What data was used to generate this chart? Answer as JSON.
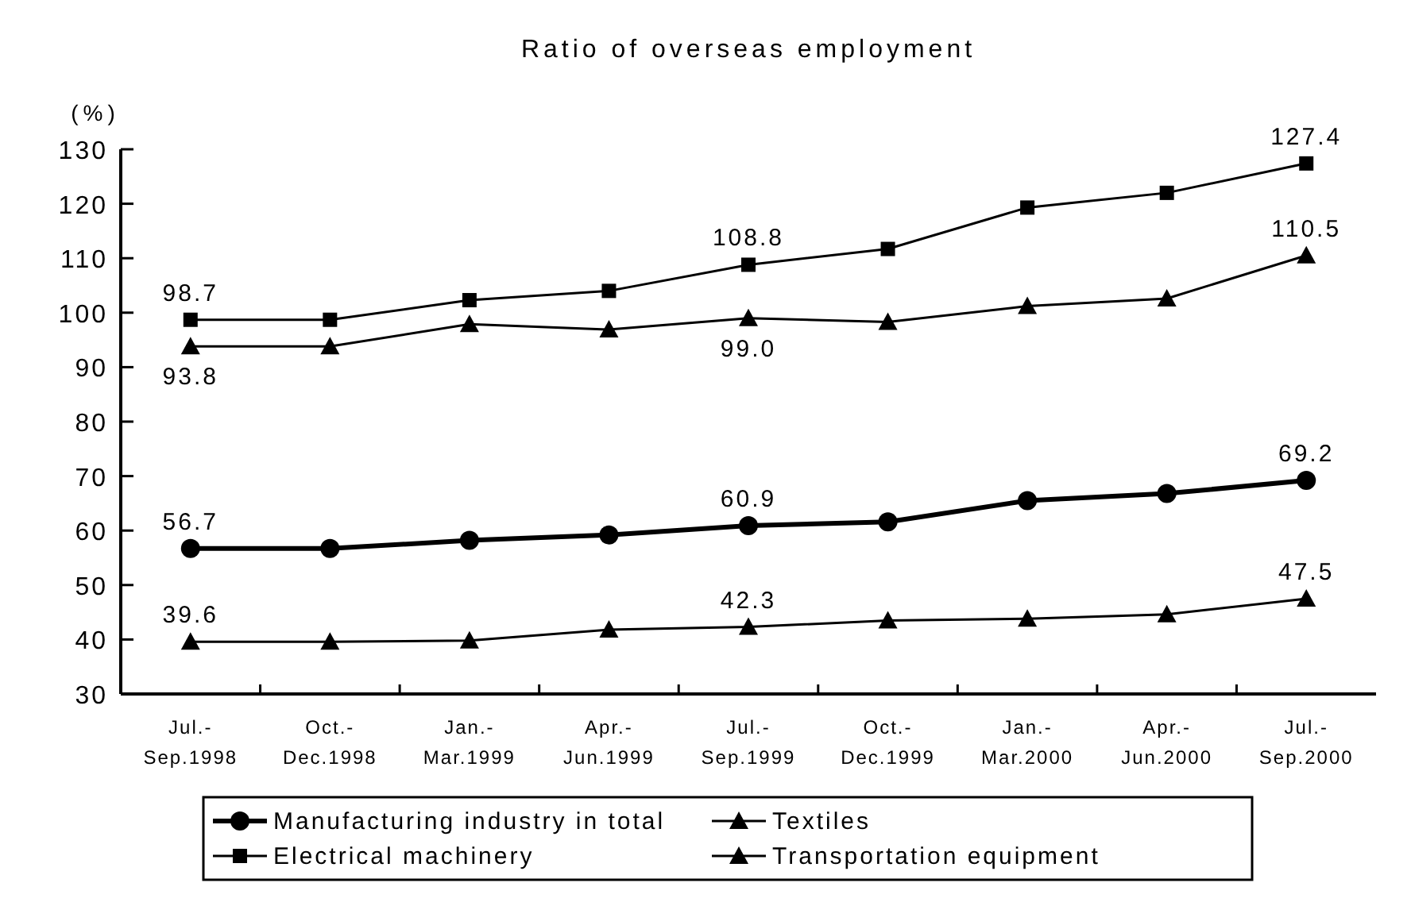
{
  "chart_data": {
    "type": "line",
    "title": "Ratio of overseas employment",
    "ylabel": "(%)",
    "categories": [
      "Jul.-\nSep.1998",
      "Oct.-\nDec.1998",
      "Jan.-\nMar.1999",
      "Apr.-\nJun.1999",
      "Jul.-\nSep.1999",
      "Oct.-\nDec.1999",
      "Jan.-\nMar.2000",
      "Apr.-\nJun.2000",
      "Jul.-\nSep.2000"
    ],
    "series": [
      {
        "name": "Manufacturing industry in total",
        "color": "#000000",
        "marker": "circle",
        "values": [
          56.7,
          56.7,
          58.2,
          59.2,
          60.9,
          61.6,
          65.5,
          66.8,
          69.2
        ],
        "value_labels": [
          "56.7",
          null,
          null,
          null,
          "60.9",
          null,
          null,
          null,
          "69.2"
        ]
      },
      {
        "name": "Textiles",
        "color": "#000000",
        "marker": "triangle",
        "values": [
          93.8,
          93.8,
          97.9,
          96.9,
          99.0,
          98.3,
          101.2,
          102.6,
          110.5
        ],
        "value_labels": [
          "93.8",
          null,
          null,
          null,
          "99.0",
          null,
          null,
          null,
          "110.5"
        ]
      },
      {
        "name": "Electrical machinery",
        "color": "#000000",
        "marker": "square",
        "values": [
          98.7,
          98.7,
          102.3,
          104.0,
          108.8,
          111.7,
          119.3,
          122.0,
          127.4
        ],
        "value_labels": [
          "98.7",
          null,
          null,
          null,
          "108.8",
          null,
          null,
          null,
          "127.4"
        ]
      },
      {
        "name": "Transportation equipment",
        "color": "#000000",
        "marker": "triangle",
        "values": [
          39.6,
          39.6,
          39.8,
          41.8,
          42.3,
          43.5,
          43.8,
          44.6,
          47.5
        ],
        "value_labels": [
          "39.6",
          null,
          null,
          null,
          "42.3",
          null,
          null,
          null,
          "47.5"
        ]
      }
    ],
    "ylim": [
      30,
      130
    ],
    "yticks": [
      30,
      40,
      50,
      60,
      70,
      80,
      90,
      100,
      110,
      120,
      130
    ],
    "grid": false,
    "legend": "bottom"
  }
}
